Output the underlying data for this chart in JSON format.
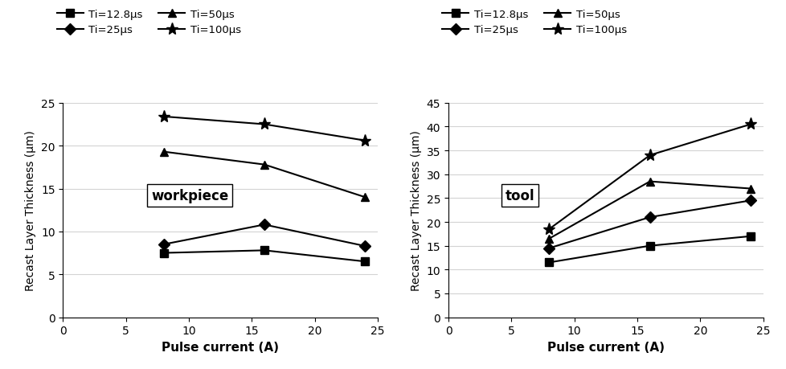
{
  "x": [
    8,
    16,
    24
  ],
  "workpiece": {
    "Ti_12.8": [
      7.5,
      7.8,
      6.5
    ],
    "Ti_25": [
      8.5,
      10.8,
      8.3
    ],
    "Ti_50": [
      19.3,
      17.8,
      14.0
    ],
    "Ti_100": [
      23.4,
      22.5,
      20.6
    ]
  },
  "tool": {
    "Ti_12.8": [
      11.5,
      15.0,
      17.0
    ],
    "Ti_25": [
      14.5,
      21.0,
      24.5
    ],
    "Ti_50": [
      16.5,
      28.5,
      27.0
    ],
    "Ti_100": [
      18.5,
      34.0,
      40.5
    ]
  },
  "workpiece_xlim": [
    0,
    25
  ],
  "workpiece_ylim": [
    0,
    25
  ],
  "tool_xlim": [
    0,
    25
  ],
  "tool_ylim": [
    0,
    45
  ],
  "workpiece_yticks": [
    0,
    5,
    10,
    15,
    20,
    25
  ],
  "tool_yticks": [
    0,
    5,
    10,
    15,
    20,
    25,
    30,
    35,
    40,
    45
  ],
  "xticks": [
    0,
    5,
    10,
    15,
    20,
    25
  ],
  "xlabel": "Pulse current (A)",
  "ylabel": "Recast Layer Thickness (μm)",
  "legend_labels": [
    "Ti=12.8μs",
    "Ti=25μs",
    "Ti=50μs",
    "Ti=100μs"
  ],
  "markers": [
    "s",
    "D",
    "^",
    "*"
  ],
  "colors": [
    "#000000",
    "#000000",
    "#000000",
    "#000000"
  ],
  "workpiece_label": "workpiece",
  "tool_label": "tool",
  "background_color": "#ffffff"
}
